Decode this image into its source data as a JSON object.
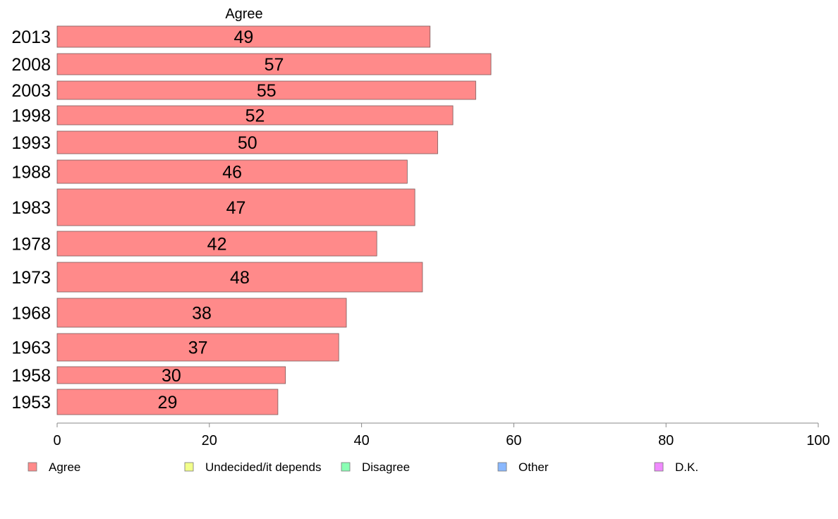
{
  "chart_data": {
    "type": "bar",
    "orientation": "horizontal",
    "title": "Agree",
    "categories": [
      "2013",
      "2008",
      "2003",
      "1998",
      "1993",
      "1988",
      "1983",
      "1978",
      "1973",
      "1968",
      "1963",
      "1958",
      "1953"
    ],
    "series": [
      {
        "name": "Agree",
        "values": [
          49,
          57,
          55,
          52,
          50,
          46,
          47,
          42,
          48,
          38,
          37,
          30,
          29
        ]
      }
    ],
    "xlim": [
      0,
      100
    ],
    "xticks": [
      "0",
      "20",
      "40",
      "60",
      "80",
      "100"
    ],
    "grid": false,
    "legend": {
      "position": "bottom",
      "items": [
        {
          "label": "Agree",
          "color": "#ff8a8a"
        },
        {
          "label": "Undecided/it depends",
          "color": "#f2ff8a"
        },
        {
          "label": "Disagree",
          "color": "#8affb4"
        },
        {
          "label": "Other",
          "color": "#8ab8ff"
        },
        {
          "label": "D.K.",
          "color": "#f08aff"
        }
      ]
    },
    "colors": {
      "bar": "#ff8a8a",
      "bar_stroke": "#7a5a5a",
      "axis": "#888888"
    }
  }
}
